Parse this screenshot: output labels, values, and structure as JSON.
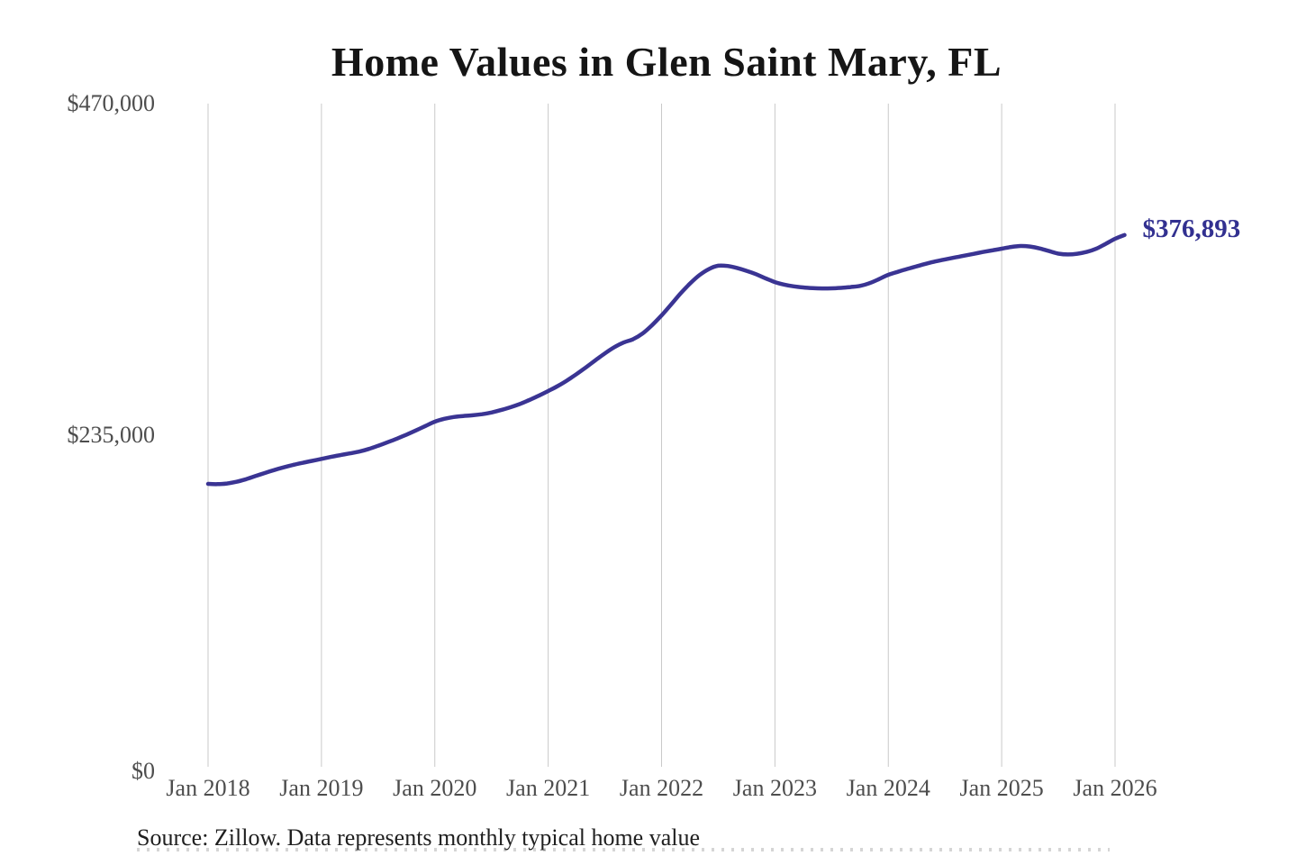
{
  "title": "Home Values in Glen Saint Mary, FL",
  "source_note": "Source: Zillow. Data represents monthly typical home value",
  "colors": {
    "line": "#3a3493",
    "end_label": "#323090",
    "grid": "#c9c9c9",
    "tick_text": "#4d4d4d",
    "title_text": "#151515",
    "source_text": "#1f1f1f",
    "background": "#ffffff"
  },
  "chart_data": {
    "type": "line",
    "title": "Home Values in Glen Saint Mary, FL",
    "xlabel": "",
    "ylabel": "",
    "x_start": "2018-01",
    "x_interval": "monthly",
    "x_tick_labels": [
      "Jan 2018",
      "Jan 2019",
      "Jan 2020",
      "Jan 2021",
      "Jan 2022",
      "Jan 2023",
      "Jan 2024",
      "Jan 2025",
      "Jan 2026"
    ],
    "y_ticks": [
      {
        "value": 470000,
        "label": "$470,000"
      },
      {
        "value": 235000,
        "label": "$235,000"
      },
      {
        "value": 0,
        "label": "$0"
      }
    ],
    "ylim": [
      0,
      470000
    ],
    "grid": "vertical-only",
    "legend": "none",
    "series": [
      {
        "name": "Monthly typical home value",
        "values": [
          200500,
          200300,
          200800,
          202000,
          203800,
          206000,
          208200,
          210300,
          212200,
          213900,
          215400,
          216800,
          218200,
          219600,
          220900,
          222100,
          223400,
          225200,
          227500,
          230000,
          232600,
          235400,
          238400,
          241500,
          244600,
          246600,
          247900,
          248600,
          249100,
          249900,
          251100,
          252800,
          254800,
          257100,
          259900,
          263000,
          266300,
          269800,
          273800,
          278300,
          283100,
          288100,
          293000,
          297400,
          300700,
          303100,
          307100,
          313000,
          319900,
          327500,
          335400,
          342400,
          348400,
          352700,
          355100,
          354900,
          353500,
          351500,
          349100,
          346200,
          343500,
          341700,
          340500,
          339700,
          339200,
          339000,
          339100,
          339400,
          340000,
          340800,
          342700,
          345600,
          348700,
          350800,
          352800,
          354700,
          356500,
          358200,
          359600,
          360900,
          362200,
          363500,
          364800,
          366000,
          367200,
          368400,
          369100,
          368700,
          367400,
          365500,
          363700,
          363100,
          363600,
          364900,
          367100,
          370600,
          374200,
          376893
        ]
      }
    ],
    "end_annotation": {
      "text": "$376,893",
      "value": 376893
    }
  }
}
